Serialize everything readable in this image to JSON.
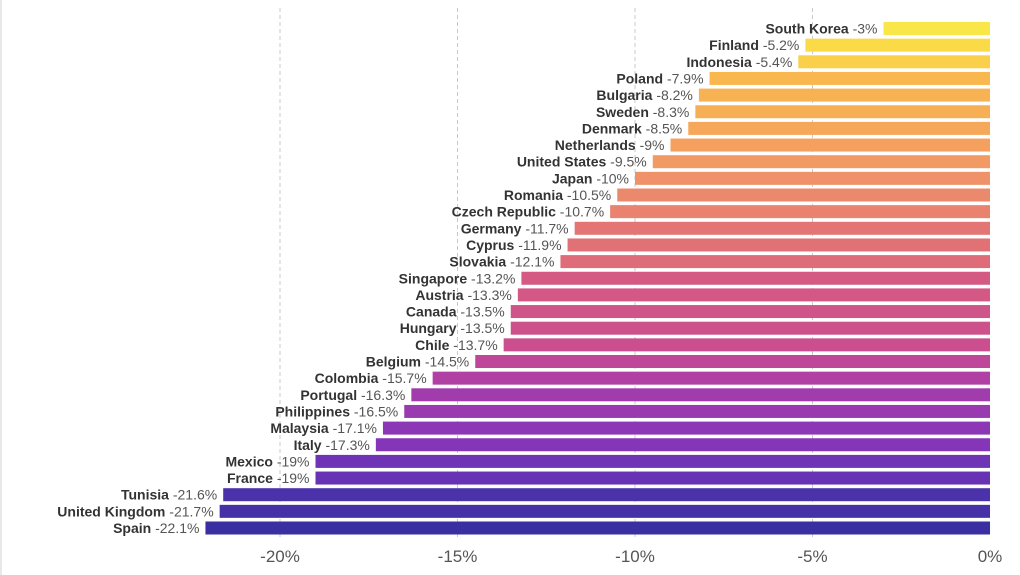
{
  "chart_data": {
    "type": "bar",
    "orientation": "horizontal",
    "categories": [
      "South Korea",
      "Finland",
      "Indonesia",
      "Poland",
      "Bulgaria",
      "Sweden",
      "Denmark",
      "Netherlands",
      "United States",
      "Japan",
      "Romania",
      "Czech Republic",
      "Germany",
      "Cyprus",
      "Slovakia",
      "Singapore",
      "Austria",
      "Canada",
      "Hungary",
      "Chile",
      "Belgium",
      "Colombia",
      "Portugal",
      "Philippines",
      "Malaysia",
      "Italy",
      "Mexico",
      "France",
      "Tunisia",
      "United Kingdom",
      "Spain"
    ],
    "values": [
      -3,
      -5.2,
      -5.4,
      -7.9,
      -8.2,
      -8.3,
      -8.5,
      -9,
      -9.5,
      -10,
      -10.5,
      -10.7,
      -11.7,
      -11.9,
      -12.1,
      -13.2,
      -13.3,
      -13.5,
      -13.5,
      -13.7,
      -14.5,
      -15.7,
      -16.3,
      -16.5,
      -17.1,
      -17.3,
      -19,
      -19,
      -21.6,
      -21.7,
      -22.1
    ],
    "value_labels": [
      "-3%",
      "-5.2%",
      "-5.4%",
      "-7.9%",
      "-8.2%",
      "-8.3%",
      "-8.5%",
      "-9%",
      "-9.5%",
      "-10%",
      "-10.5%",
      "-10.7%",
      "-11.7%",
      "-11.9%",
      "-12.1%",
      "-13.2%",
      "-13.3%",
      "-13.5%",
      "-13.5%",
      "-13.7%",
      "-14.5%",
      "-15.7%",
      "-16.3%",
      "-16.5%",
      "-17.1%",
      "-17.3%",
      "-19%",
      "-19%",
      "-21.6%",
      "-21.7%",
      "-22.1%"
    ],
    "xlim": [
      -22.1,
      0
    ],
    "xticks": [
      -20,
      -15,
      -10,
      -5,
      0
    ],
    "xtick_labels": [
      "-20%",
      "-15%",
      "-10%",
      "-5%",
      "0%"
    ],
    "grid": true,
    "title": "",
    "xlabel": "",
    "ylabel": "",
    "colors": [
      "#f9e74a",
      "#fada47",
      "#fad04a",
      "#f8b84f",
      "#f7b254",
      "#f7af56",
      "#f6a85a",
      "#f5a05f",
      "#f29a64",
      "#ef9169",
      "#eb896d",
      "#e9826f",
      "#e37674",
      "#e07276",
      "#de6d79",
      "#d45983",
      "#d35885",
      "#cf5489",
      "#cd528c",
      "#cb4f8e",
      "#bf4799",
      "#b040a4",
      "#a13cad",
      "#9a3ab1",
      "#8b37b6",
      "#8535b8",
      "#6f33b5",
      "#6832b4",
      "#4b31aa",
      "#4631a7",
      "#3a2fa0"
    ]
  }
}
